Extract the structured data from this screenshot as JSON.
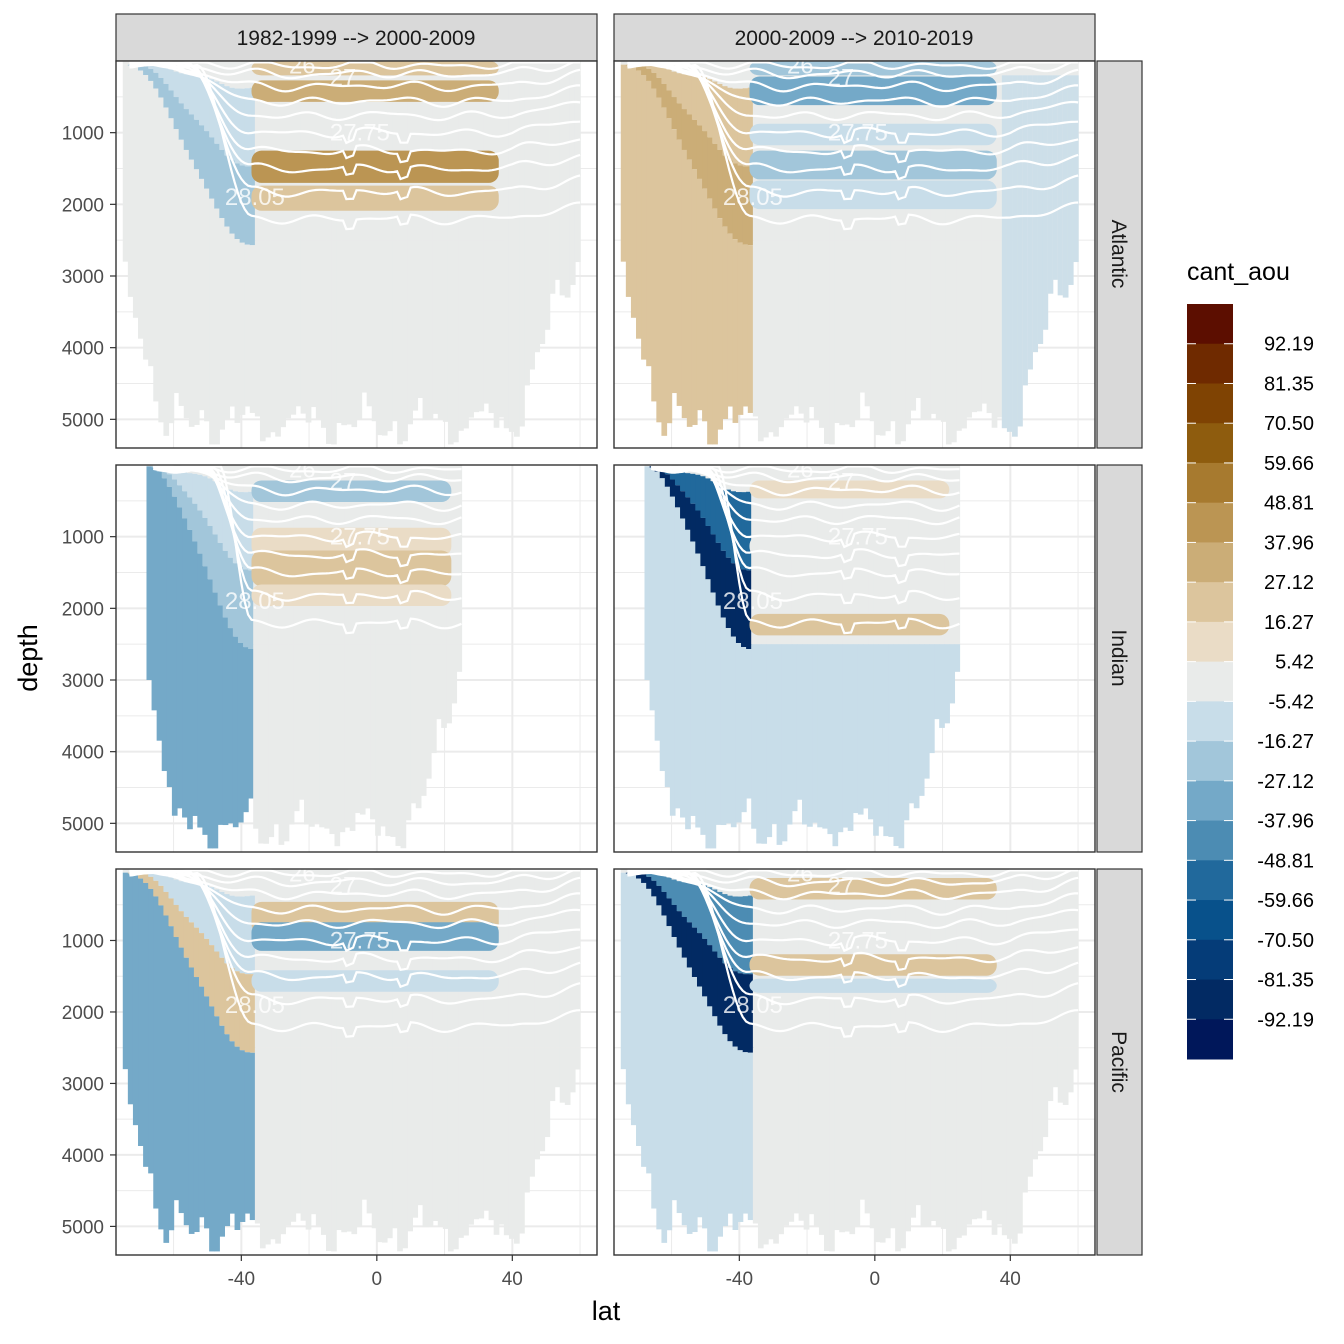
{
  "chart_data": {
    "type": "heatmap",
    "xlabel": "lat",
    "ylabel": "depth",
    "x_ticks": [
      -40,
      0,
      40
    ],
    "y_ticks": [
      1000,
      2000,
      3000,
      4000,
      5000
    ],
    "xlim": [
      -77,
      65
    ],
    "ylim": [
      5400,
      0
    ],
    "y_reversed": true,
    "facet_columns": [
      "1982-1999 --> 2000-2009",
      "2000-2009 --> 2010-2019"
    ],
    "facet_rows": [
      "Atlantic",
      "Indian",
      "Pacific"
    ],
    "legend": {
      "title": "cant_aou",
      "position": "right",
      "breaks": [
        92.19,
        81.35,
        70.5,
        59.66,
        48.81,
        37.96,
        27.12,
        16.27,
        5.42,
        -5.42,
        -16.27,
        -27.12,
        -37.96,
        -48.81,
        -59.66,
        -70.5,
        -81.35,
        -92.19
      ],
      "break_labels": [
        "92.19",
        "81.35",
        "70.50",
        "59.66",
        "48.81",
        "37.96",
        "27.12",
        "16.27",
        "5.42",
        "-5.42",
        "-16.27",
        "-27.12",
        "-37.96",
        "-48.81",
        "-59.66",
        "-70.50",
        "-81.35",
        "-92.19"
      ],
      "colors": [
        "#5c0e00",
        "#6f2a00",
        "#7f4303",
        "#8e5c0e",
        "#a77a2f",
        "#bb9553",
        "#cbad77",
        "#dcc59d",
        "#eadcc6",
        "#e9ebea",
        "#c8dde9",
        "#a2c6da",
        "#74a9c8",
        "#4c8cb3",
        "#21699c",
        "#08518b",
        "#053c78",
        "#022a63",
        "#00175a"
      ]
    },
    "isopycnal_labels": [
      "26",
      "27",
      "27.75",
      "28.05"
    ],
    "isopycnal_levels": [
      26,
      26.5,
      27,
      27.25,
      27.5,
      27.75,
      27.85,
      27.95,
      28.05,
      28.1
    ],
    "panels": [
      {
        "row": "Atlantic",
        "column": "1982-1999 --> 2000-2009",
        "xrange": [
          -75,
          60
        ],
        "southern_boundary": -37,
        "south": {
          "upper_value": -16.27,
          "deep_value": -5.42,
          "core_value": -27.12
        },
        "north": {
          "background": 0,
          "deep_water": 0,
          "north_edge_value": -5.42,
          "bands": [
            {
              "depth_min": 0,
              "depth_max": 200,
              "value": 16.27
            },
            {
              "depth_min": 350,
              "depth_max": 650,
              "value": 27.12
            },
            {
              "depth_min": 1300,
              "depth_max": 1750,
              "value": 37.96
            },
            {
              "depth_min": 1750,
              "depth_max": 2100,
              "value": 16.27
            }
          ]
        }
      },
      {
        "row": "Atlantic",
        "column": "2000-2009 --> 2010-2019",
        "xrange": [
          -75,
          60
        ],
        "southern_boundary": -37,
        "south": {
          "upper_value": 16.27,
          "deep_value": 16.27,
          "core_value": 27.12
        },
        "north": {
          "background": 0,
          "deep_water": 0,
          "north_edge_value": -16.27,
          "bands": [
            {
              "depth_min": 0,
              "depth_max": 200,
              "value": -27.12
            },
            {
              "depth_min": 300,
              "depth_max": 700,
              "value": -37.96
            },
            {
              "depth_min": 800,
              "depth_max": 1100,
              "value": -16.27
            },
            {
              "depth_min": 1300,
              "depth_max": 1700,
              "value": -27.12
            },
            {
              "depth_min": 1700,
              "depth_max": 2100,
              "value": -16.27
            }
          ]
        }
      },
      {
        "row": "Indian",
        "column": "1982-1999 --> 2000-2009",
        "xrange": [
          -68,
          25
        ],
        "southern_boundary": -37,
        "south": {
          "upper_value": -16.27,
          "deep_value": -37.96,
          "core_value": -27.12
        },
        "north": {
          "background": 0,
          "deep_water": 0,
          "bands": [
            {
              "depth_min": 300,
              "depth_max": 600,
              "value": -27.12
            },
            {
              "depth_min": 800,
              "depth_max": 1200,
              "value": 5.42
            },
            {
              "depth_min": 1200,
              "depth_max": 1700,
              "value": 16.27
            },
            {
              "depth_min": 1700,
              "depth_max": 2000,
              "value": 5.42
            }
          ]
        }
      },
      {
        "row": "Indian",
        "column": "2000-2009 --> 2010-2019",
        "xrange": [
          -68,
          25
        ],
        "southern_boundary": -37,
        "south": {
          "upper_value": -59.66,
          "deep_value": -16.27,
          "core_value": -92.19
        },
        "north": {
          "background": 0,
          "deep_water": -16.27,
          "bands": [
            {
              "depth_min": 300,
              "depth_max": 550,
              "value": 5.42
            },
            {
              "depth_min": 900,
              "depth_max": 1200,
              "value": -5.42
            },
            {
              "depth_min": 2000,
              "depth_max": 2300,
              "value": 16.27
            }
          ]
        }
      },
      {
        "row": "Pacific",
        "column": "1982-1999 --> 2000-2009",
        "xrange": [
          -75,
          60
        ],
        "southern_boundary": -37,
        "south": {
          "upper_value": -16.27,
          "deep_value": -37.96,
          "core_value": 16.27
        },
        "north": {
          "background": 0,
          "deep_water": 0,
          "bands": [
            {
              "depth_min": 500,
              "depth_max": 950,
              "value": 16.27
            },
            {
              "depth_min": 700,
              "depth_max": 1100,
              "value": -37.96
            },
            {
              "depth_min": 1500,
              "depth_max": 1800,
              "value": -16.27
            }
          ]
        }
      },
      {
        "row": "Pacific",
        "column": "2000-2009 --> 2010-2019",
        "xrange": [
          -75,
          60
        ],
        "southern_boundary": -37,
        "south": {
          "upper_value": -48.81,
          "deep_value": -16.27,
          "core_value": -92.19
        },
        "north": {
          "background": 0,
          "deep_water": 0,
          "bands": [
            {
              "depth_min": 200,
              "depth_max": 500,
              "value": 16.27
            },
            {
              "depth_min": 1200,
              "depth_max": 1500,
              "value": 16.27
            },
            {
              "depth_min": 1600,
              "depth_max": 1800,
              "value": -16.27
            }
          ]
        }
      }
    ]
  }
}
